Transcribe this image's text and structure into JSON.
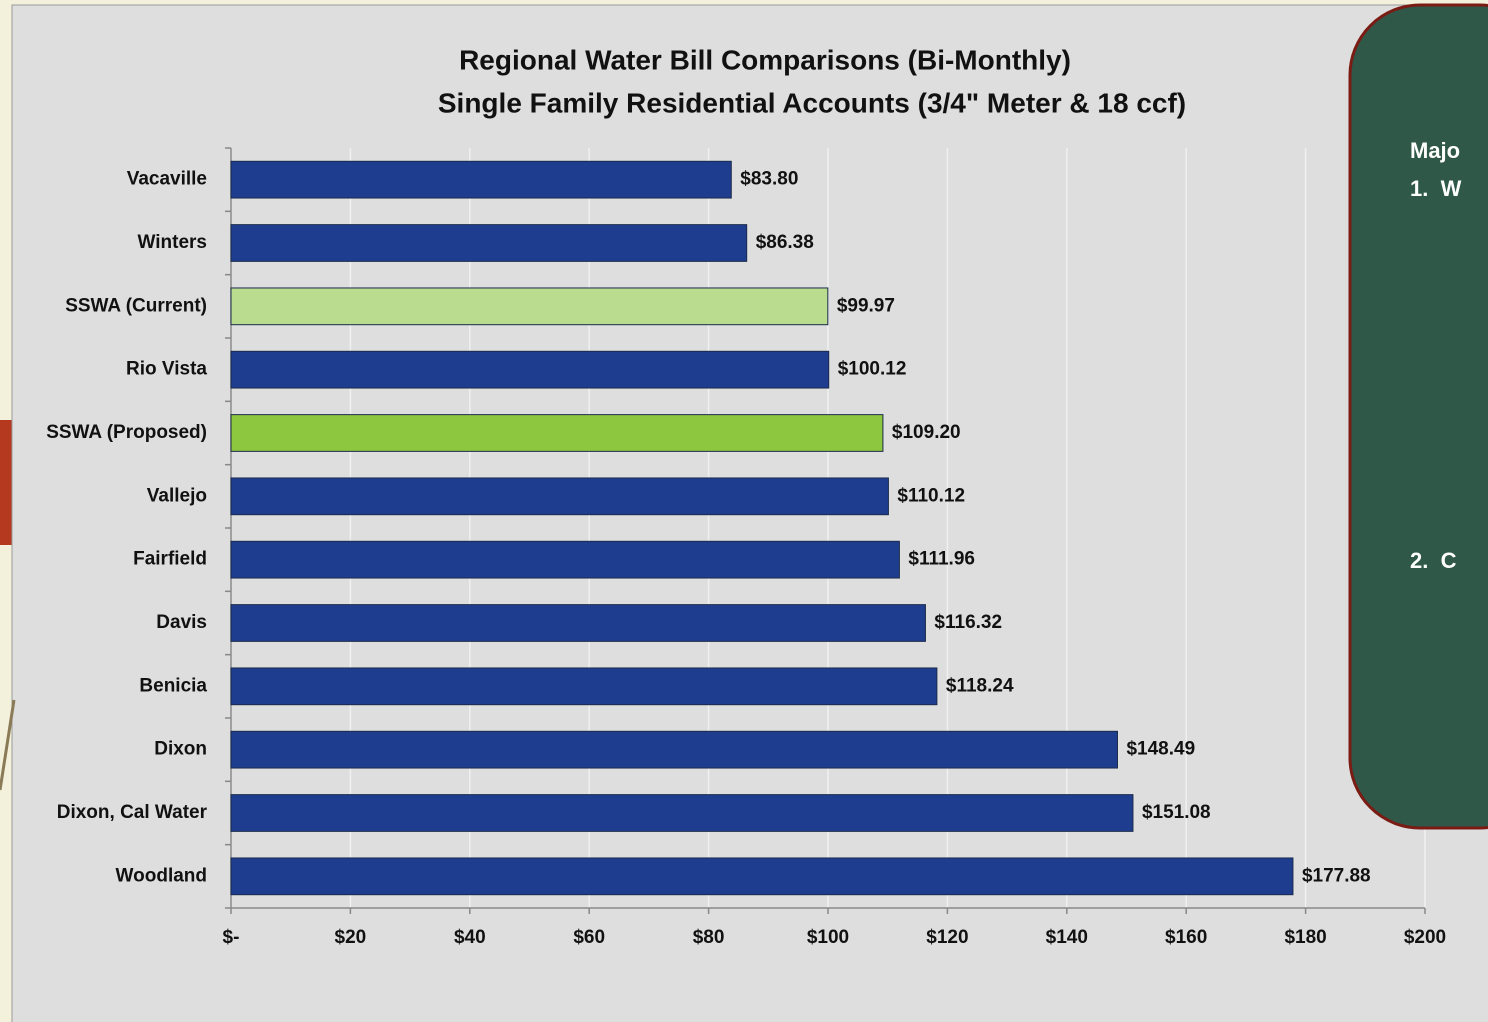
{
  "chart_data": {
    "type": "barh",
    "title": "Regional Water Bill Comparisons (Bi-Monthly)",
    "subtitle": "Single Family Residential Accounts (3/4\" Meter & 18 ccf)",
    "categories": [
      "Vacaville",
      "Winters",
      "SSWA (Current)",
      "Rio Vista",
      "SSWA (Proposed)",
      "Vallejo",
      "Fairfield",
      "Davis",
      "Benicia",
      "Dixon",
      "Dixon, Cal Water",
      "Woodland"
    ],
    "values": [
      83.8,
      86.38,
      99.97,
      100.12,
      109.2,
      110.12,
      111.96,
      116.32,
      118.24,
      148.49,
      151.08,
      177.88
    ],
    "value_labels": [
      "$83.80",
      "$86.38",
      "$99.97",
      "$100.12",
      "$109.20",
      "$110.12",
      "$111.96",
      "$116.32",
      "$118.24",
      "$148.49",
      "$151.08",
      "$177.88"
    ],
    "colors": [
      "#1f3d8f",
      "#1f3d8f",
      "#b9dc8e",
      "#1f3d8f",
      "#8dc63f",
      "#1f3d8f",
      "#1f3d8f",
      "#1f3d8f",
      "#1f3d8f",
      "#1f3d8f",
      "#1f3d8f",
      "#1f3d8f"
    ],
    "xlim": [
      0,
      200
    ],
    "xticks": [
      {
        "value": 0,
        "label": "$-"
      },
      {
        "value": 20,
        "label": "$20"
      },
      {
        "value": 40,
        "label": "$40"
      },
      {
        "value": 60,
        "label": "$60"
      },
      {
        "value": 80,
        "label": "$80"
      },
      {
        "value": 100,
        "label": "$100"
      },
      {
        "value": 120,
        "label": "$120"
      },
      {
        "value": 140,
        "label": "$140"
      },
      {
        "value": 160,
        "label": "$160"
      },
      {
        "value": 180,
        "label": "$180"
      },
      {
        "value": 200,
        "label": "$200"
      }
    ],
    "grid": true
  },
  "side_panel": {
    "heading": "Majo",
    "items": [
      "1.  W",
      "2.  C"
    ]
  }
}
